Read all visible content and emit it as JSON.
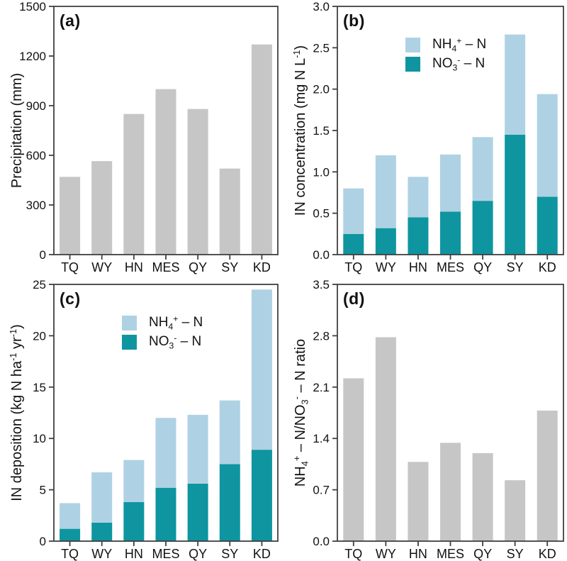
{
  "figure": {
    "colors": {
      "gray": "#c6c6c6",
      "nh4": "#aed2e3",
      "no3": "#0e95a0",
      "axis": "#404040",
      "text": "#111111"
    },
    "categories": [
      "TQ",
      "WY",
      "HN",
      "MES",
      "QY",
      "SY",
      "KD"
    ]
  },
  "chart_data": [
    {
      "id": "a",
      "panel_label": "(a)",
      "type": "bar",
      "bar_color": "gray",
      "ylabel": "Precipitation (mm)",
      "ylabel_parts": [
        {
          "style": "normal",
          "text": "Precipitation (mm)"
        }
      ],
      "categories": [
        "TQ",
        "WY",
        "HN",
        "MES",
        "QY",
        "SY",
        "KD"
      ],
      "values": [
        470,
        565,
        850,
        1000,
        880,
        520,
        1270
      ],
      "ylim": [
        0,
        1500
      ],
      "yticks": [
        "0",
        "300",
        "600",
        "900",
        "1200",
        "1500"
      ],
      "grid": false,
      "legend": false
    },
    {
      "id": "b",
      "panel_label": "(b)",
      "type": "stacked-bar",
      "ylabel": "IN concentration (mg N L-1)",
      "ylabel_parts": [
        {
          "style": "normal",
          "text": "IN concentration (mg N L"
        },
        {
          "style": "sup",
          "text": "-1"
        },
        {
          "style": "normal",
          "text": ")"
        }
      ],
      "categories": [
        "TQ",
        "WY",
        "HN",
        "MES",
        "QY",
        "SY",
        "KD"
      ],
      "series": [
        {
          "name": "NH4+ - N",
          "color_key": "nh4",
          "name_parts": [
            {
              "style": "normal",
              "text": "NH"
            },
            {
              "style": "sub",
              "text": "4"
            },
            {
              "style": "sup",
              "text": "+"
            },
            {
              "style": "normal",
              "text": " – N"
            }
          ],
          "values": [
            0.55,
            0.88,
            0.49,
            0.69,
            0.77,
            1.21,
            1.24
          ]
        },
        {
          "name": "NO3- - N",
          "color_key": "no3",
          "name_parts": [
            {
              "style": "normal",
              "text": "NO"
            },
            {
              "style": "sub",
              "text": "3"
            },
            {
              "style": "sup",
              "text": "-"
            },
            {
              "style": "normal",
              "text": " – N"
            }
          ],
          "values": [
            0.25,
            0.32,
            0.45,
            0.52,
            0.65,
            1.45,
            0.7
          ]
        }
      ],
      "stack_order_bottom_to_top": [
        "no3",
        "nh4"
      ],
      "ylim": [
        0,
        3.0
      ],
      "yticks": [
        "0.0",
        "0.5",
        "1.0",
        "1.5",
        "2.0",
        "2.5",
        "3.0"
      ],
      "grid": false,
      "legend": true,
      "legend_position": "upper-center-left"
    },
    {
      "id": "c",
      "panel_label": "(c)",
      "type": "stacked-bar",
      "ylabel": "IN deposition (kg N ha-1 yr-1)",
      "ylabel_parts": [
        {
          "style": "normal",
          "text": "IN deposition (kg N ha"
        },
        {
          "style": "sup",
          "text": "-1"
        },
        {
          "style": "normal",
          "text": " yr"
        },
        {
          "style": "sup",
          "text": "-1"
        },
        {
          "style": "normal",
          "text": ")"
        }
      ],
      "categories": [
        "TQ",
        "WY",
        "HN",
        "MES",
        "QY",
        "SY",
        "KD"
      ],
      "series": [
        {
          "name": "NH4+ - N",
          "color_key": "nh4",
          "name_parts": [
            {
              "style": "normal",
              "text": "NH"
            },
            {
              "style": "sub",
              "text": "4"
            },
            {
              "style": "sup",
              "text": "+"
            },
            {
              "style": "normal",
              "text": " – N"
            }
          ],
          "values": [
            2.5,
            4.9,
            4.1,
            6.8,
            6.7,
            6.2,
            15.6
          ]
        },
        {
          "name": "NO3- - N",
          "color_key": "no3",
          "name_parts": [
            {
              "style": "normal",
              "text": "NO"
            },
            {
              "style": "sub",
              "text": "3"
            },
            {
              "style": "sup",
              "text": "-"
            },
            {
              "style": "normal",
              "text": " – N"
            }
          ],
          "values": [
            1.2,
            1.8,
            3.8,
            5.2,
            5.6,
            7.5,
            8.9
          ]
        }
      ],
      "stack_order_bottom_to_top": [
        "no3",
        "nh4"
      ],
      "ylim": [
        0,
        25
      ],
      "yticks": [
        "0",
        "5",
        "10",
        "15",
        "20",
        "25"
      ],
      "grid": false,
      "legend": true,
      "legend_position": "upper-center-left"
    },
    {
      "id": "d",
      "panel_label": "(d)",
      "type": "bar",
      "bar_color": "gray",
      "ylabel": "NH4+ - N/NO3- - N ratio",
      "ylabel_parts": [
        {
          "style": "normal",
          "text": "NH"
        },
        {
          "style": "sub",
          "text": "4"
        },
        {
          "style": "sup",
          "text": "+"
        },
        {
          "style": "normal",
          "text": " – N/NO"
        },
        {
          "style": "sub",
          "text": "3"
        },
        {
          "style": "sup",
          "text": "-"
        },
        {
          "style": "normal",
          "text": " – N ratio"
        }
      ],
      "categories": [
        "TQ",
        "WY",
        "HN",
        "MES",
        "QY",
        "SY",
        "KD"
      ],
      "values": [
        2.22,
        2.78,
        1.08,
        1.34,
        1.2,
        0.83,
        1.78
      ],
      "ylim": [
        0,
        3.5
      ],
      "yticks": [
        "0.0",
        "0.7",
        "1.4",
        "2.1",
        "2.8",
        "3.5"
      ],
      "grid": false,
      "legend": false
    }
  ]
}
